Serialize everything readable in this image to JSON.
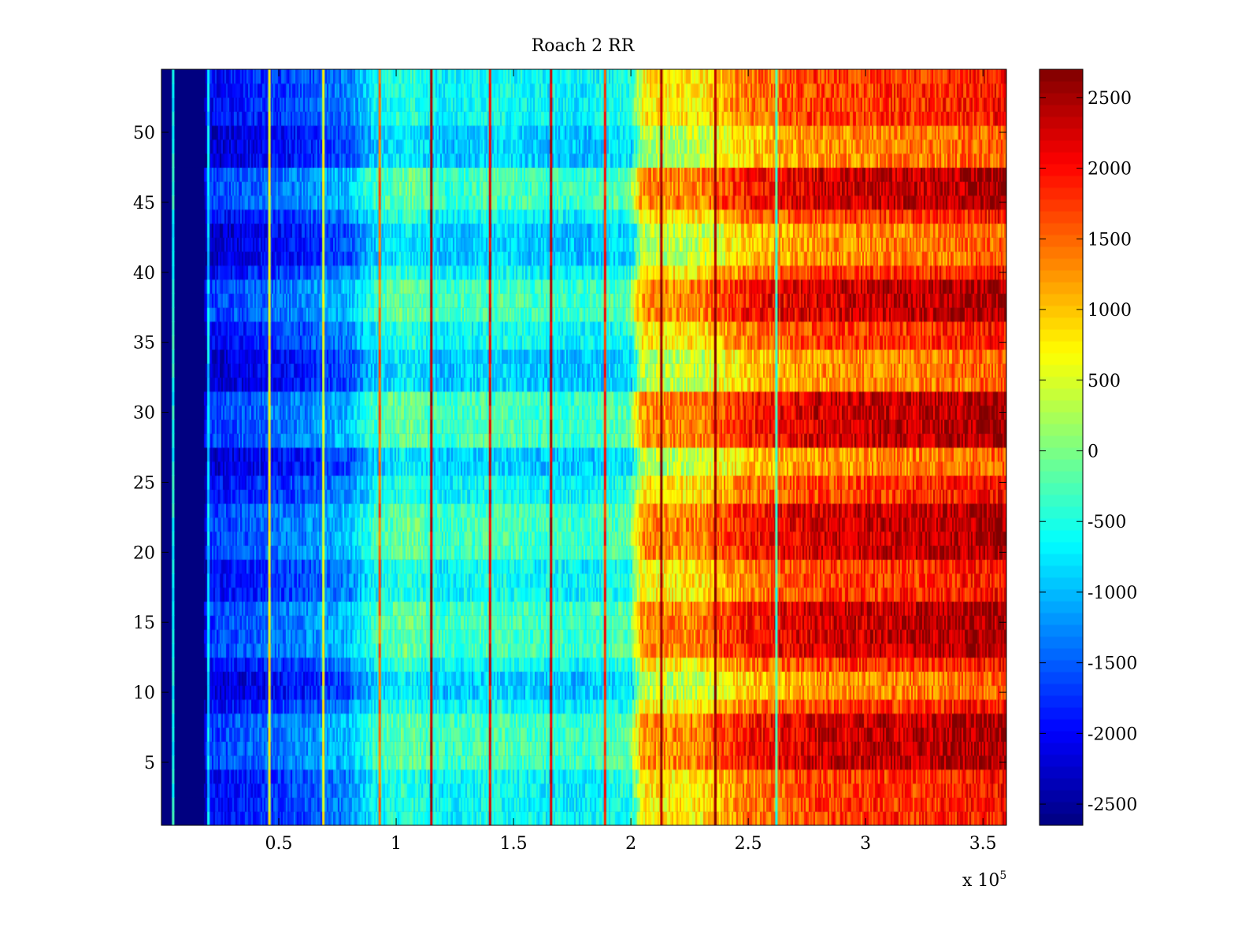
{
  "chart_data": {
    "type": "heatmap",
    "title": "Roach 2 RR",
    "xlabel": "",
    "ylabel": "",
    "xlim": [
      0,
      360000
    ],
    "ylim": [
      0.5,
      54.5
    ],
    "x_ticks": [
      50000,
      100000,
      150000,
      200000,
      250000,
      300000,
      350000
    ],
    "x_tick_labels": [
      "0.5",
      "1",
      "1.5",
      "2",
      "2.5",
      "3",
      "3.5"
    ],
    "x_exponent_label": "x 10",
    "x_exponent_power": "5",
    "y_ticks": [
      5,
      10,
      15,
      20,
      25,
      30,
      35,
      40,
      45,
      50
    ],
    "y_tick_labels": [
      "5",
      "10",
      "15",
      "20",
      "25",
      "30",
      "35",
      "40",
      "45",
      "50"
    ],
    "colorbar": {
      "colormap": "jet",
      "clim": [
        -2650,
        2700
      ],
      "ticks": [
        -2500,
        -2000,
        -1500,
        -1000,
        -500,
        0,
        500,
        1000,
        1500,
        2000,
        2500
      ],
      "tick_labels": [
        "-2500",
        "-2000",
        "-1500",
        "-1000",
        "-500",
        "0",
        "500",
        "1000",
        "1500",
        "2000",
        "2500"
      ]
    },
    "rows": 54,
    "x_profile": {
      "x": [
        0,
        5000,
        18000,
        20000,
        40000,
        60000,
        80000,
        90000,
        105000,
        120000,
        145000,
        160000,
        180000,
        200000,
        205000,
        230000,
        250000,
        280000,
        320000,
        360000
      ],
      "value": [
        -2650,
        -2650,
        -2650,
        -2000,
        -1800,
        -1600,
        -1300,
        -700,
        -400,
        -700,
        -550,
        -650,
        -700,
        -500,
        750,
        800,
        1400,
        1700,
        1800,
        2000
      ]
    },
    "hot_rows": [
      [
        5,
        8
      ],
      [
        13,
        16
      ],
      [
        20,
        23
      ],
      [
        28,
        31
      ],
      [
        37,
        39
      ],
      [
        45,
        47
      ]
    ],
    "cool_rows": [
      [
        10,
        11
      ],
      [
        26,
        27
      ],
      [
        32,
        34
      ],
      [
        41,
        43
      ],
      [
        48,
        50
      ]
    ],
    "vertical_streaks": [
      {
        "x": 5000,
        "value": -500
      },
      {
        "x": 20000,
        "value": -800
      },
      {
        "x": 46000,
        "value": 700
      },
      {
        "x": 69000,
        "value": 600
      },
      {
        "x": 93000,
        "value": 1500
      },
      {
        "x": 115000,
        "value": 2400
      },
      {
        "x": 140000,
        "value": 2100
      },
      {
        "x": 166000,
        "value": 2300
      },
      {
        "x": 189000,
        "value": 1800
      },
      {
        "x": 213000,
        "value": 2600
      },
      {
        "x": 236000,
        "value": 2600
      },
      {
        "x": 262000,
        "value": -300
      }
    ]
  }
}
